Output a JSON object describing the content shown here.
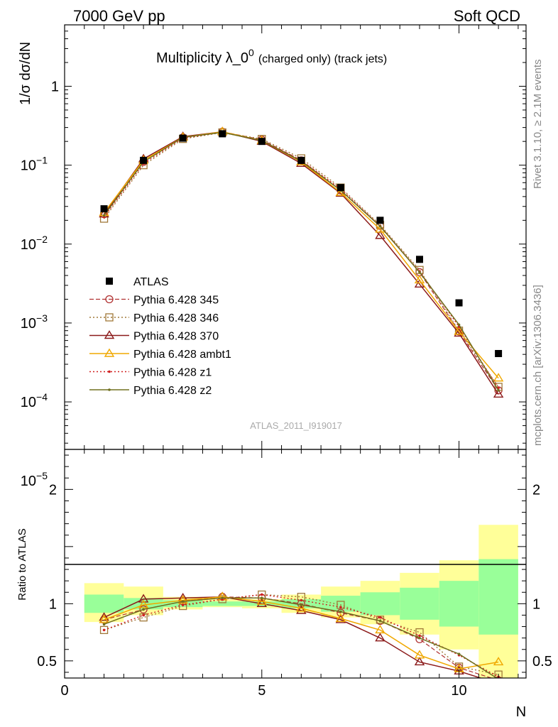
{
  "header": {
    "left": "7000 GeV pp",
    "right": "Soft QCD"
  },
  "side_labels": {
    "rivet": "Rivet 3.1.10, ≥ 2.1M events",
    "mcplots": "mcplots.cern.ch [arXiv:1306.3436]"
  },
  "watermark": "ATLAS_2011_I919017",
  "colors": {
    "atlas": "#000000",
    "p345": "#b03030",
    "p346": "#a07838",
    "p370": "#8b1a1a",
    "ambt1": "#f0a800",
    "z1": "#d02020",
    "z2": "#707020",
    "band_inner": "#99ff99",
    "band_outer": "#ffff99"
  },
  "chart_data": [
    {
      "type": "line",
      "title": "Multiplicity λ_0",
      "title_sup": "0",
      "title_suffix": "(charged only) (track jets)",
      "ylabel": "1/σ dσ/dN",
      "yscale": "log",
      "ylim": [
        2.5e-05,
        6
      ],
      "xlim": [
        0,
        11.7
      ],
      "legend_placement": "middle-left",
      "x": [
        1,
        2,
        3,
        4,
        5,
        6,
        7,
        8,
        9,
        10,
        11
      ],
      "series": [
        {
          "name": "ATLAS",
          "style": "data",
          "values": [
            0.028,
            0.115,
            0.22,
            0.25,
            0.2,
            0.115,
            0.052,
            0.02,
            0.0064,
            0.0018,
            0.00041
          ]
        },
        {
          "name": "Pythia 6.428 345",
          "style": "p345",
          "values": [
            0.024,
            0.11,
            0.225,
            0.265,
            0.21,
            0.115,
            0.048,
            0.017,
            0.0044,
            0.00078,
            0.00014
          ]
        },
        {
          "name": "Pythia 6.428 346",
          "style": "p346",
          "values": [
            0.021,
            0.1,
            0.215,
            0.26,
            0.215,
            0.122,
            0.052,
            0.0175,
            0.0047,
            0.0008,
            0.000155
          ]
        },
        {
          "name": "Pythia 6.428 370",
          "style": "p370",
          "values": [
            0.024,
            0.12,
            0.23,
            0.265,
            0.2,
            0.105,
            0.044,
            0.0128,
            0.0031,
            0.00074,
            0.000125
          ]
        },
        {
          "name": "Pythia 6.428 ambt1",
          "style": "ambt1",
          "values": [
            0.025,
            0.115,
            0.225,
            0.265,
            0.205,
            0.11,
            0.045,
            0.0154,
            0.0035,
            0.00078,
            0.0002
          ]
        },
        {
          "name": "Pythia 6.428 z1",
          "style": "z1",
          "values": [
            0.022,
            0.105,
            0.22,
            0.26,
            0.205,
            0.115,
            0.05,
            0.017,
            0.0045,
            0.0009,
            0.00015
          ]
        },
        {
          "name": "Pythia 6.428 z2",
          "style": "z2",
          "values": [
            0.023,
            0.11,
            0.225,
            0.26,
            0.205,
            0.112,
            0.048,
            0.0168,
            0.0044,
            0.00095,
            0.00014
          ]
        }
      ]
    },
    {
      "type": "line",
      "xlabel": "N",
      "ylabel": "Ratio to ATLAS",
      "ylim": [
        0.35,
        2.35
      ],
      "xlim": [
        0,
        11.7
      ],
      "xticks": [
        0,
        5,
        10
      ],
      "yticks": [
        0.5,
        1,
        2
      ],
      "reference_line": 1,
      "x": [
        1,
        2,
        3,
        4,
        5,
        6,
        7,
        8,
        9,
        10,
        11
      ],
      "bands": {
        "inner": [
          [
            0.92,
            1.08
          ],
          [
            0.95,
            1.05
          ],
          [
            0.97,
            1.03
          ],
          [
            0.98,
            1.02
          ],
          [
            0.98,
            1.02
          ],
          [
            0.96,
            1.04
          ],
          [
            0.93,
            1.07
          ],
          [
            0.9,
            1.1
          ],
          [
            0.86,
            1.14
          ],
          [
            0.8,
            1.2
          ],
          [
            0.73,
            1.39
          ]
        ],
        "outer": [
          [
            0.84,
            1.18
          ],
          [
            0.9,
            1.15
          ],
          [
            0.95,
            1.06
          ],
          [
            0.97,
            1.04
          ],
          [
            0.96,
            1.04
          ],
          [
            0.92,
            1.08
          ],
          [
            0.88,
            1.15
          ],
          [
            0.82,
            1.2
          ],
          [
            0.73,
            1.27
          ],
          [
            0.6,
            1.38
          ],
          [
            0.35,
            1.69
          ]
        ]
      },
      "series": [
        {
          "name": "Pythia 6.428 345",
          "style": "p345",
          "values": [
            0.86,
            0.95,
            1.02,
            1.06,
            1.05,
            1.0,
            0.92,
            0.85,
            0.69,
            0.44,
            0.33
          ]
        },
        {
          "name": "Pythia 6.428 346",
          "style": "p346",
          "values": [
            0.77,
            0.88,
            0.98,
            1.04,
            1.08,
            1.06,
            0.99,
            0.86,
            0.75,
            0.45,
            0.38
          ]
        },
        {
          "name": "Pythia 6.428 370",
          "style": "p370",
          "values": [
            0.88,
            1.04,
            1.05,
            1.06,
            1.0,
            0.94,
            0.86,
            0.7,
            0.49,
            0.41,
            0.3
          ]
        },
        {
          "name": "Pythia 6.428 ambt1",
          "style": "ambt1",
          "values": [
            0.86,
            0.99,
            1.03,
            1.06,
            1.02,
            0.96,
            0.87,
            0.77,
            0.55,
            0.43,
            0.49
          ]
        },
        {
          "name": "Pythia 6.428 z1",
          "style": "z1",
          "values": [
            0.77,
            0.9,
            0.99,
            1.04,
            1.08,
            1.03,
            0.97,
            0.88,
            0.72,
            0.55,
            0.36
          ]
        },
        {
          "name": "Pythia 6.428 z2",
          "style": "z2",
          "values": [
            0.82,
            0.95,
            1.02,
            1.05,
            1.05,
            0.99,
            0.93,
            0.85,
            0.7,
            0.56,
            0.34
          ]
        }
      ]
    }
  ]
}
